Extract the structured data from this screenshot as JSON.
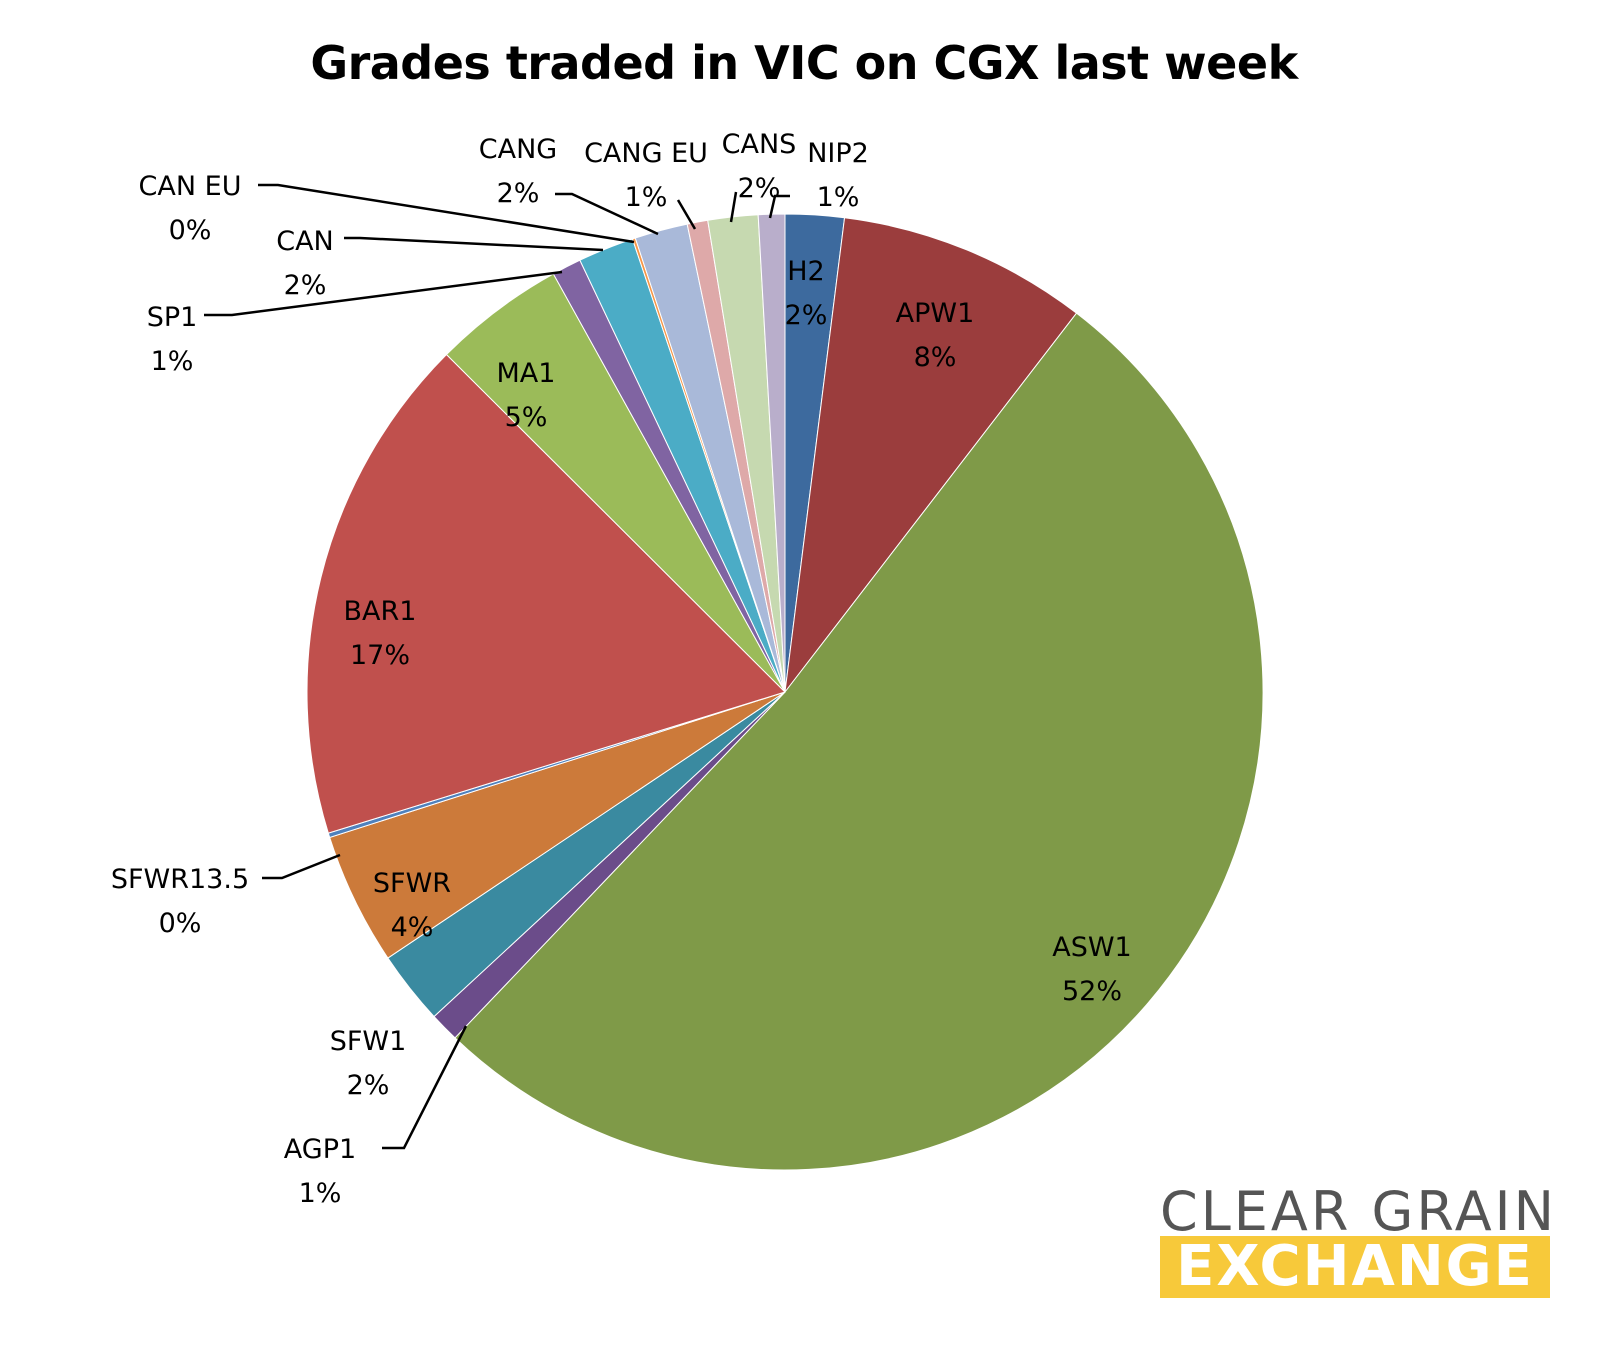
{
  "chart_data": {
    "type": "pie",
    "title": "Grades traded in VIC on CGX last week",
    "slices": [
      {
        "label": "H2",
        "percent": "2%",
        "value": 2.0,
        "color": "#3d6a9e"
      },
      {
        "label": "APW1",
        "percent": "8%",
        "value": 8.5,
        "color": "#9b3d3d"
      },
      {
        "label": "ASW1",
        "percent": "52%",
        "value": 52.0,
        "color": "#7f9a48"
      },
      {
        "label": "AGP1",
        "percent": "1%",
        "value": 1.0,
        "color": "#6b4c8a"
      },
      {
        "label": "SFW1",
        "percent": "2%",
        "value": 2.5,
        "color": "#3a8aa0"
      },
      {
        "label": "SFWR",
        "percent": "4%",
        "value": 4.5,
        "color": "#cc7a3a"
      },
      {
        "label": "SFWR13.5",
        "percent": "0%",
        "value": 0.15,
        "color": "#4f81bd"
      },
      {
        "label": "BAR1",
        "percent": "17%",
        "value": 17.35,
        "color": "#c0504d"
      },
      {
        "label": "MA1",
        "percent": "5%",
        "value": 4.5,
        "color": "#9bbb59"
      },
      {
        "label": "SP1",
        "percent": "1%",
        "value": 1.0,
        "color": "#8064a2"
      },
      {
        "label": "CAN",
        "percent": "2%",
        "value": 1.9,
        "color": "#4bacc6"
      },
      {
        "label": "CAN EU",
        "percent": "0%",
        "value": 0.1,
        "color": "#f79646"
      },
      {
        "label": "CANG",
        "percent": "2%",
        "value": 1.8,
        "color": "#a9b9d9"
      },
      {
        "label": "CANG EU",
        "percent": "1%",
        "value": 0.7,
        "color": "#dea9a9"
      },
      {
        "label": "CANS",
        "percent": "2%",
        "value": 1.7,
        "color": "#c6d9b0"
      },
      {
        "label": "NIP2",
        "percent": "1%",
        "value": 0.9,
        "color": "#b9aecb"
      }
    ]
  },
  "logo": {
    "line1": "CLEAR GRAIN",
    "line2": "EXCHANGE",
    "accent_color": "#f7c93a"
  }
}
